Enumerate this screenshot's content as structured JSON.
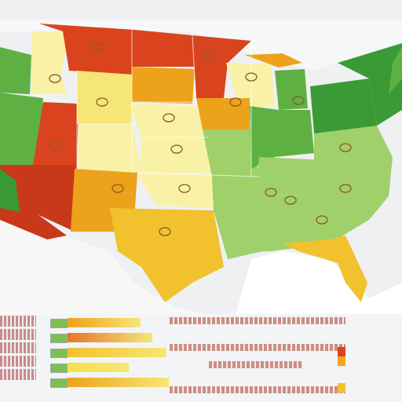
{
  "title": "",
  "palette": {
    "red": "#d9441f",
    "dark_red": "#c8391a",
    "orange": "#eda21b",
    "gold": "#f2c12e",
    "yellow": "#f6e676",
    "light_yellow": "#f9f2a6",
    "light_green": "#9fd06a",
    "green": "#5fb043",
    "dark_green": "#3a9a35",
    "water": "#ffffff",
    "land_outline": "#d0d4d8"
  },
  "legend": {
    "bar_levels": [
      0.62,
      0.72,
      0.84,
      0.52,
      0.86
    ],
    "bar_colors": [
      "#eda21b",
      "#e8742a",
      "#f2c12e",
      "#f6e04a",
      "#eda21b"
    ],
    "swatches": [
      "#d9441f",
      "#f2a51e",
      "#f2c12e"
    ]
  },
  "icons": [
    "state-marker-icon"
  ]
}
